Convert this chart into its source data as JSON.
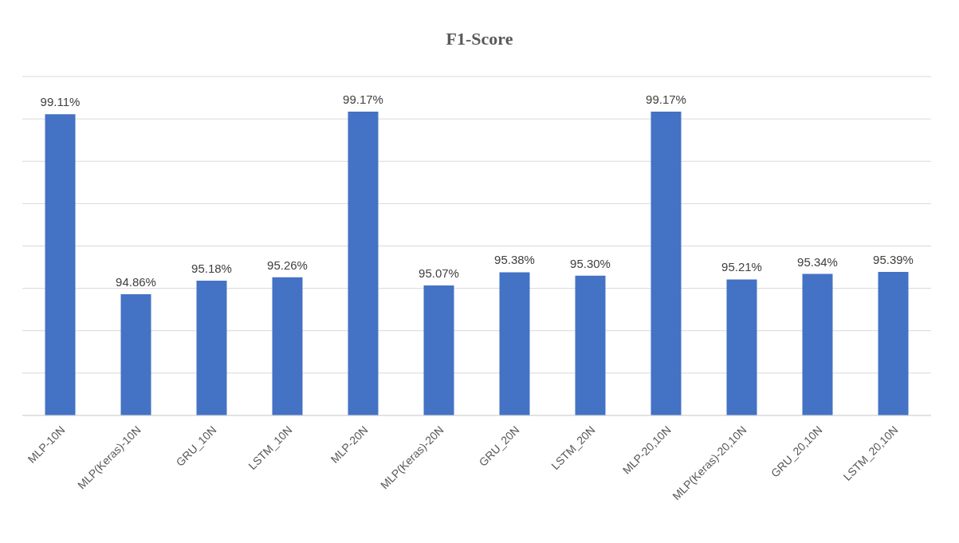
{
  "chart_data": {
    "type": "bar",
    "title": "F1-Score",
    "categories": [
      "MLP-10N",
      "MLP(Keras)-10N",
      "GRU_10N",
      "LSTM_10N",
      "MLP-20N",
      "MLP(Keras)-20N",
      "GRU_20N",
      "LSTM_20N",
      "MLP-20,10N",
      "MLP(Keras)-20,10N",
      "GRU_20,10N",
      "LSTM_20,10N"
    ],
    "values": [
      99.11,
      94.86,
      95.18,
      95.26,
      99.17,
      95.07,
      95.38,
      95.3,
      99.17,
      95.21,
      95.34,
      95.39
    ],
    "value_labels": [
      "99.11%",
      "94.86%",
      "95.18%",
      "95.26%",
      "99.17%",
      "95.07%",
      "95.38%",
      "95.30%",
      "99.17%",
      "95.21%",
      "95.34%",
      "95.39%"
    ],
    "color": "#4472c4",
    "ylim": [
      92,
      100
    ],
    "tick_labels": "x",
    "grid": "y",
    "legend": false
  }
}
